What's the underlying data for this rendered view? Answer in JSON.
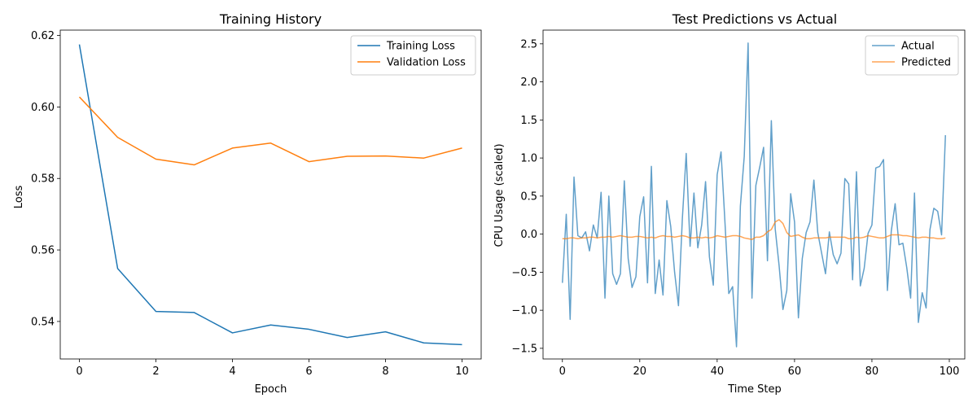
{
  "chart_data": [
    {
      "type": "line",
      "title": "Training History",
      "xlabel": "Epoch",
      "ylabel": "Loss",
      "xlim": [
        -0.5,
        10.5
      ],
      "ylim": [
        0.5295,
        0.6215
      ],
      "xticks": [
        0,
        2,
        4,
        6,
        8,
        10
      ],
      "yticks": [
        0.54,
        0.56,
        0.58,
        0.6,
        0.62
      ],
      "ytick_labels": [
        "0.54",
        "0.56",
        "0.58",
        "0.60",
        "0.62"
      ],
      "grid": false,
      "legend": "top-right",
      "x": [
        0,
        1,
        2,
        3,
        4,
        5,
        6,
        7,
        8,
        9,
        10
      ],
      "series": [
        {
          "name": "Training Loss",
          "color": "#1f77b4",
          "values": [
            0.6175,
            0.5548,
            0.5428,
            0.5425,
            0.5368,
            0.539,
            0.5378,
            0.5355,
            0.5371,
            0.534,
            0.5335
          ]
        },
        {
          "name": "Validation Loss",
          "color": "#ff7f0e",
          "values": [
            0.6028,
            0.5915,
            0.5854,
            0.5838,
            0.5885,
            0.5899,
            0.5847,
            0.5862,
            0.5863,
            0.5857,
            0.5885
          ]
        }
      ]
    },
    {
      "type": "line",
      "title": "Test Predictions vs Actual",
      "xlabel": "Time Step",
      "ylabel": "CPU Usage (scaled)",
      "xlim": [
        -5,
        104
      ],
      "ylim": [
        -1.64,
        2.68
      ],
      "xticks": [
        0,
        20,
        40,
        60,
        80,
        100
      ],
      "yticks": [
        -1.5,
        -1.0,
        -0.5,
        0.0,
        0.5,
        1.0,
        1.5,
        2.0,
        2.5
      ],
      "ytick_labels": [
        "−1.5",
        "−1.0",
        "−0.5",
        "0.0",
        "0.5",
        "1.0",
        "1.5",
        "2.0",
        "2.5"
      ],
      "grid": false,
      "legend": "top-right",
      "series": [
        {
          "name": "Actual",
          "color": "#1f77b4",
          "alpha": 0.7,
          "values": [
            -0.64,
            0.26,
            -1.12,
            0.75,
            -0.02,
            -0.05,
            0.03,
            -0.22,
            0.12,
            -0.05,
            0.55,
            -0.84,
            0.5,
            -0.52,
            -0.66,
            -0.52,
            0.7,
            -0.32,
            -0.7,
            -0.56,
            0.23,
            0.49,
            -0.64,
            0.89,
            -0.78,
            -0.34,
            -0.8,
            0.44,
            0.1,
            -0.5,
            -0.94,
            0.2,
            1.06,
            -0.16,
            0.54,
            -0.18,
            0.12,
            0.69,
            -0.3,
            -0.67,
            0.78,
            1.08,
            0.17,
            -0.78,
            -0.69,
            -1.48,
            0.37,
            1.02,
            2.51,
            -0.84,
            0.64,
            0.88,
            1.14,
            -0.35,
            1.49,
            0.07,
            -0.41,
            -0.99,
            -0.74,
            0.53,
            0.16,
            -1.1,
            -0.32,
            0.02,
            0.16,
            0.71,
            0.02,
            -0.25,
            -0.52,
            0.03,
            -0.27,
            -0.39,
            -0.25,
            0.73,
            0.66,
            -0.6,
            0.82,
            -0.68,
            -0.45,
            0.01,
            0.12,
            0.87,
            0.89,
            0.98,
            -0.74,
            0.04,
            0.4,
            -0.14,
            -0.12,
            -0.44,
            -0.84,
            0.54,
            -1.16,
            -0.77,
            -0.97,
            0.06,
            0.34,
            0.3,
            -0.01,
            1.3
          ]
        },
        {
          "name": "Predicted",
          "color": "#ff7f0e",
          "alpha": 0.7,
          "values": [
            -0.06,
            -0.06,
            -0.05,
            -0.05,
            -0.06,
            -0.05,
            -0.05,
            -0.04,
            -0.04,
            -0.05,
            -0.04,
            -0.04,
            -0.03,
            -0.04,
            -0.03,
            -0.02,
            -0.03,
            -0.04,
            -0.04,
            -0.03,
            -0.03,
            -0.04,
            -0.05,
            -0.04,
            -0.05,
            -0.03,
            -0.02,
            -0.03,
            -0.03,
            -0.04,
            -0.03,
            -0.02,
            -0.03,
            -0.05,
            -0.05,
            -0.04,
            -0.05,
            -0.04,
            -0.05,
            -0.04,
            -0.02,
            -0.03,
            -0.04,
            -0.03,
            -0.02,
            -0.02,
            -0.03,
            -0.05,
            -0.06,
            -0.07,
            -0.04,
            -0.04,
            -0.02,
            0.03,
            0.06,
            0.16,
            0.19,
            0.14,
            0.02,
            -0.03,
            -0.02,
            -0.01,
            -0.04,
            -0.06,
            -0.06,
            -0.05,
            -0.05,
            -0.05,
            -0.05,
            -0.04,
            -0.04,
            -0.04,
            -0.04,
            -0.04,
            -0.06,
            -0.06,
            -0.04,
            -0.05,
            -0.04,
            -0.02,
            -0.03,
            -0.04,
            -0.05,
            -0.05,
            -0.03,
            -0.01,
            -0.01,
            -0.01,
            -0.02,
            -0.02,
            -0.03,
            -0.04,
            -0.05,
            -0.04,
            -0.04,
            -0.05,
            -0.05,
            -0.06,
            -0.06,
            -0.05
          ]
        }
      ]
    }
  ]
}
